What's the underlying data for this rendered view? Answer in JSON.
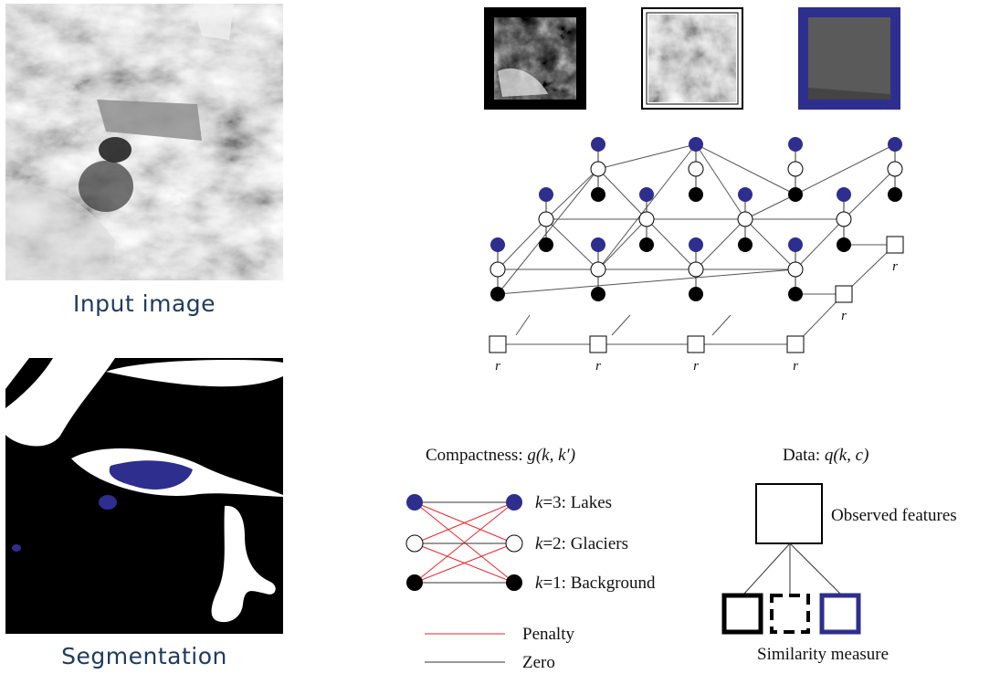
{
  "left_panel": {
    "input_caption": "Input image",
    "segmentation_caption": "Segmentation"
  },
  "graph": {
    "node_label": "r"
  },
  "compactness": {
    "title_text": "Compactness: ",
    "title_math": "g(k, k′)",
    "classes": [
      {
        "k": "k",
        "eq": "=3: ",
        "name": "Lakes"
      },
      {
        "k": "k",
        "eq": "=2: ",
        "name": "Glaciers"
      },
      {
        "k": "k",
        "eq": "=1: ",
        "name": "Background"
      }
    ],
    "penalty_label": "Penalty",
    "zero_label": "Zero"
  },
  "data_term": {
    "title_text": "Data: ",
    "title_math": "q(k, c)",
    "observed_label": "Observed features",
    "similarity_label": "Similarity measure"
  },
  "colors": {
    "lake_blue": "#2e2e8e",
    "penalty_red": "#e8262d",
    "caption_blue": "#1f3a5f"
  }
}
